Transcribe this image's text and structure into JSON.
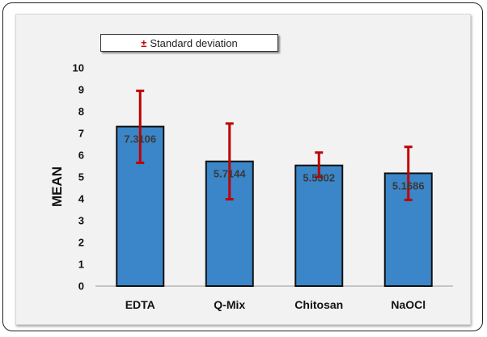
{
  "chart_data": {
    "type": "bar",
    "categories": [
      "EDTA",
      "Q-Mix",
      "Chitosan",
      "NaOCl"
    ],
    "values": [
      7.3106,
      5.7144,
      5.5302,
      5.1686
    ],
    "value_labels": [
      "7.3106",
      "5.7144",
      "5.5302",
      "5.1686"
    ],
    "error_low": [
      5.65,
      3.98,
      5.0,
      3.95
    ],
    "error_high": [
      8.95,
      7.45,
      6.12,
      6.38
    ],
    "ylabel": "MEAN",
    "xlabel": "",
    "ylim": [
      0,
      10
    ],
    "yticks": [
      "0",
      "1",
      "2",
      "3",
      "4",
      "5",
      "6",
      "7",
      "8",
      "9",
      "10"
    ],
    "legend": {
      "symbol": "±",
      "label": "Standard deviation",
      "position": "top-left"
    },
    "grid": false,
    "colors": {
      "bar": "#3a86c8",
      "bar_edge": "#111111",
      "error": "#c00000",
      "plot_bg": "#f2f2f2"
    }
  }
}
